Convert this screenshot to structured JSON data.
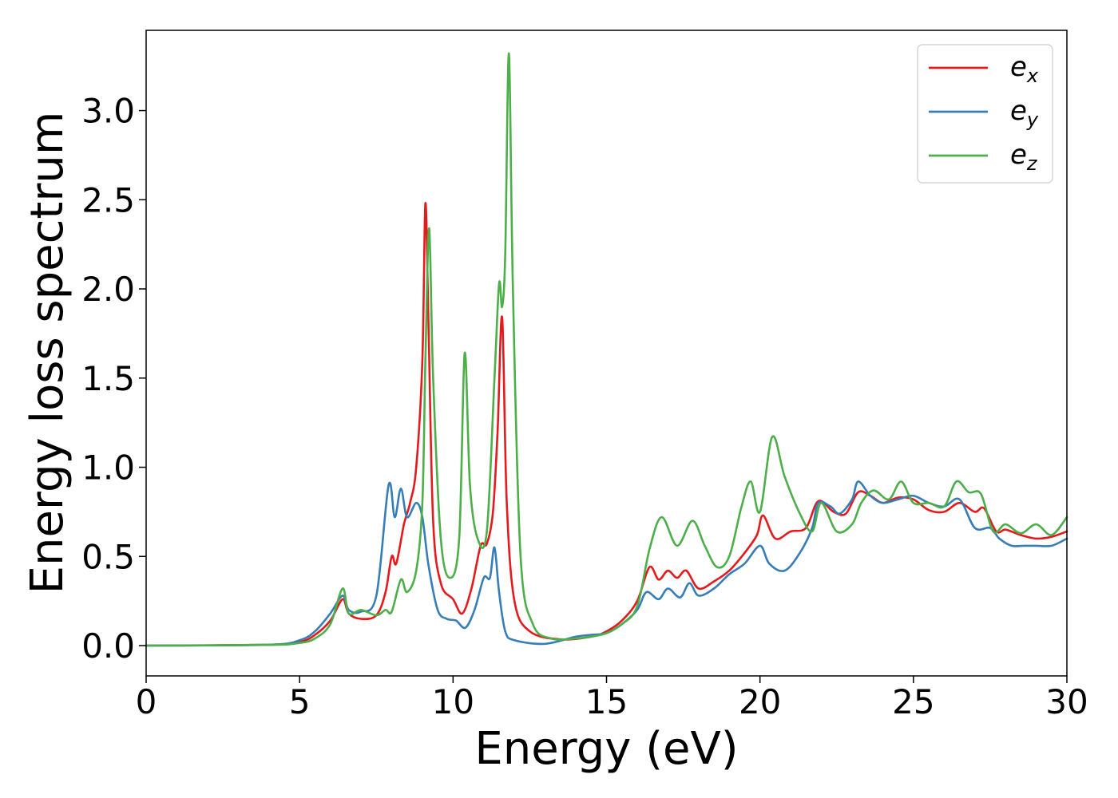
{
  "chart_data": {
    "type": "line",
    "title": "",
    "xlabel": "Energy (eV)",
    "ylabel": "Energy loss spectrum",
    "xlim": [
      0,
      30
    ],
    "ylim": [
      -0.17,
      3.45
    ],
    "xticks": [
      0,
      5,
      10,
      15,
      20,
      25,
      30
    ],
    "xtick_labels": [
      "0",
      "5",
      "10",
      "15",
      "20",
      "25",
      "30"
    ],
    "yticks": [
      0.0,
      0.5,
      1.0,
      1.5,
      2.0,
      2.5,
      3.0
    ],
    "ytick_labels": [
      "0.0",
      "0.5",
      "1.0",
      "1.5",
      "2.0",
      "2.5",
      "3.0"
    ],
    "grid": false,
    "legend": {
      "position": "top-right"
    },
    "series": [
      {
        "name": "e_x",
        "legend_base": "e",
        "legend_sub": "x",
        "color": "#e41a1c",
        "points": [
          [
            0,
            0
          ],
          [
            4,
            0.005
          ],
          [
            5,
            0.02
          ],
          [
            5.5,
            0.06
          ],
          [
            6,
            0.14
          ],
          [
            6.4,
            0.26
          ],
          [
            6.6,
            0.18
          ],
          [
            7,
            0.15
          ],
          [
            7.5,
            0.17
          ],
          [
            7.8,
            0.3
          ],
          [
            8.0,
            0.5
          ],
          [
            8.15,
            0.46
          ],
          [
            8.4,
            0.68
          ],
          [
            8.6,
            0.8
          ],
          [
            8.8,
            1.0
          ],
          [
            9.0,
            1.6
          ],
          [
            9.1,
            2.48
          ],
          [
            9.2,
            1.8
          ],
          [
            9.35,
            0.7
          ],
          [
            9.6,
            0.35
          ],
          [
            10.0,
            0.26
          ],
          [
            10.3,
            0.18
          ],
          [
            10.6,
            0.32
          ],
          [
            10.9,
            0.56
          ],
          [
            11.1,
            0.57
          ],
          [
            11.3,
            0.75
          ],
          [
            11.45,
            1.2
          ],
          [
            11.6,
            1.84
          ],
          [
            11.75,
            0.8
          ],
          [
            12,
            0.25
          ],
          [
            12.5,
            0.08
          ],
          [
            13.5,
            0.035
          ],
          [
            14.5,
            0.05
          ],
          [
            15,
            0.08
          ],
          [
            15.5,
            0.14
          ],
          [
            16,
            0.25
          ],
          [
            16.4,
            0.44
          ],
          [
            16.7,
            0.37
          ],
          [
            17.0,
            0.42
          ],
          [
            17.3,
            0.38
          ],
          [
            17.6,
            0.42
          ],
          [
            18.0,
            0.32
          ],
          [
            18.5,
            0.36
          ],
          [
            19.0,
            0.42
          ],
          [
            19.5,
            0.52
          ],
          [
            19.9,
            0.62
          ],
          [
            20.1,
            0.73
          ],
          [
            20.5,
            0.6
          ],
          [
            21.0,
            0.64
          ],
          [
            21.5,
            0.66
          ],
          [
            21.9,
            0.81
          ],
          [
            22.4,
            0.75
          ],
          [
            22.8,
            0.74
          ],
          [
            23.2,
            0.86
          ],
          [
            23.6,
            0.84
          ],
          [
            24.0,
            0.8
          ],
          [
            24.5,
            0.83
          ],
          [
            25.0,
            0.82
          ],
          [
            25.5,
            0.76
          ],
          [
            26.0,
            0.75
          ],
          [
            26.5,
            0.8
          ],
          [
            27.0,
            0.75
          ],
          [
            27.3,
            0.77
          ],
          [
            27.7,
            0.64
          ],
          [
            28.0,
            0.65
          ],
          [
            28.5,
            0.62
          ],
          [
            29.0,
            0.6
          ],
          [
            29.5,
            0.61
          ],
          [
            30.0,
            0.64
          ]
        ]
      },
      {
        "name": "e_y",
        "legend_base": "e",
        "legend_sub": "y",
        "color": "#377eb8",
        "points": [
          [
            0,
            0
          ],
          [
            4,
            0.005
          ],
          [
            5,
            0.03
          ],
          [
            5.5,
            0.08
          ],
          [
            6,
            0.18
          ],
          [
            6.4,
            0.28
          ],
          [
            6.6,
            0.2
          ],
          [
            7,
            0.19
          ],
          [
            7.5,
            0.28
          ],
          [
            7.9,
            0.9
          ],
          [
            8.1,
            0.72
          ],
          [
            8.3,
            0.88
          ],
          [
            8.5,
            0.72
          ],
          [
            8.8,
            0.8
          ],
          [
            9.0,
            0.72
          ],
          [
            9.2,
            0.45
          ],
          [
            9.5,
            0.2
          ],
          [
            9.8,
            0.15
          ],
          [
            10.1,
            0.14
          ],
          [
            10.4,
            0.1
          ],
          [
            10.7,
            0.2
          ],
          [
            11.0,
            0.38
          ],
          [
            11.2,
            0.38
          ],
          [
            11.35,
            0.55
          ],
          [
            11.5,
            0.3
          ],
          [
            11.7,
            0.08
          ],
          [
            12,
            0.03
          ],
          [
            13,
            0.01
          ],
          [
            14,
            0.05
          ],
          [
            14.5,
            0.06
          ],
          [
            15,
            0.07
          ],
          [
            15.5,
            0.12
          ],
          [
            16,
            0.2
          ],
          [
            16.3,
            0.3
          ],
          [
            16.7,
            0.26
          ],
          [
            17,
            0.32
          ],
          [
            17.4,
            0.27
          ],
          [
            17.7,
            0.35
          ],
          [
            18.0,
            0.28
          ],
          [
            18.5,
            0.32
          ],
          [
            19.0,
            0.4
          ],
          [
            19.5,
            0.46
          ],
          [
            20.0,
            0.56
          ],
          [
            20.3,
            0.46
          ],
          [
            20.8,
            0.42
          ],
          [
            21.3,
            0.52
          ],
          [
            21.7,
            0.66
          ],
          [
            21.9,
            0.8
          ],
          [
            22.3,
            0.78
          ],
          [
            22.6,
            0.74
          ],
          [
            23.0,
            0.82
          ],
          [
            23.2,
            0.92
          ],
          [
            23.6,
            0.84
          ],
          [
            24.0,
            0.8
          ],
          [
            24.5,
            0.82
          ],
          [
            25.0,
            0.84
          ],
          [
            25.5,
            0.8
          ],
          [
            26.0,
            0.78
          ],
          [
            26.5,
            0.82
          ],
          [
            27.0,
            0.66
          ],
          [
            27.5,
            0.66
          ],
          [
            27.8,
            0.6
          ],
          [
            28.2,
            0.56
          ],
          [
            28.6,
            0.56
          ],
          [
            29.0,
            0.56
          ],
          [
            29.5,
            0.56
          ],
          [
            30.0,
            0.6
          ]
        ]
      },
      {
        "name": "e_z",
        "legend_base": "e",
        "legend_sub": "z",
        "color": "#4daf4a",
        "points": [
          [
            0,
            0
          ],
          [
            4,
            0.004
          ],
          [
            5,
            0.015
          ],
          [
            5.5,
            0.04
          ],
          [
            6,
            0.12
          ],
          [
            6.4,
            0.32
          ],
          [
            6.6,
            0.18
          ],
          [
            7,
            0.2
          ],
          [
            7.5,
            0.17
          ],
          [
            7.8,
            0.2
          ],
          [
            8.0,
            0.19
          ],
          [
            8.3,
            0.37
          ],
          [
            8.5,
            0.3
          ],
          [
            8.8,
            0.42
          ],
          [
            9.0,
            0.8
          ],
          [
            9.1,
            1.6
          ],
          [
            9.22,
            2.34
          ],
          [
            9.35,
            1.5
          ],
          [
            9.6,
            0.6
          ],
          [
            9.9,
            0.38
          ],
          [
            10.2,
            0.6
          ],
          [
            10.38,
            1.64
          ],
          [
            10.55,
            0.9
          ],
          [
            10.8,
            0.6
          ],
          [
            11.1,
            0.64
          ],
          [
            11.35,
            1.5
          ],
          [
            11.5,
            2.03
          ],
          [
            11.6,
            1.9
          ],
          [
            11.7,
            2.2
          ],
          [
            11.82,
            3.32
          ],
          [
            11.95,
            2.0
          ],
          [
            12.2,
            0.5
          ],
          [
            12.6,
            0.12
          ],
          [
            13.2,
            0.04
          ],
          [
            14,
            0.04
          ],
          [
            14.5,
            0.05
          ],
          [
            15,
            0.07
          ],
          [
            15.5,
            0.12
          ],
          [
            16,
            0.22
          ],
          [
            16.4,
            0.54
          ],
          [
            16.8,
            0.72
          ],
          [
            17.3,
            0.56
          ],
          [
            17.8,
            0.7
          ],
          [
            18.2,
            0.56
          ],
          [
            18.6,
            0.44
          ],
          [
            19.0,
            0.5
          ],
          [
            19.4,
            0.78
          ],
          [
            19.7,
            0.92
          ],
          [
            20.0,
            0.75
          ],
          [
            20.4,
            1.17
          ],
          [
            20.8,
            0.95
          ],
          [
            21.3,
            0.74
          ],
          [
            21.7,
            0.64
          ],
          [
            22.0,
            0.8
          ],
          [
            22.5,
            0.64
          ],
          [
            23.0,
            0.68
          ],
          [
            23.3,
            0.8
          ],
          [
            23.7,
            0.87
          ],
          [
            24.2,
            0.82
          ],
          [
            24.6,
            0.92
          ],
          [
            25.0,
            0.8
          ],
          [
            25.5,
            0.8
          ],
          [
            26.0,
            0.78
          ],
          [
            26.4,
            0.92
          ],
          [
            26.8,
            0.86
          ],
          [
            27.2,
            0.85
          ],
          [
            27.6,
            0.64
          ],
          [
            28.0,
            0.68
          ],
          [
            28.5,
            0.63
          ],
          [
            29.0,
            0.68
          ],
          [
            29.5,
            0.62
          ],
          [
            30.0,
            0.72
          ]
        ]
      }
    ]
  }
}
